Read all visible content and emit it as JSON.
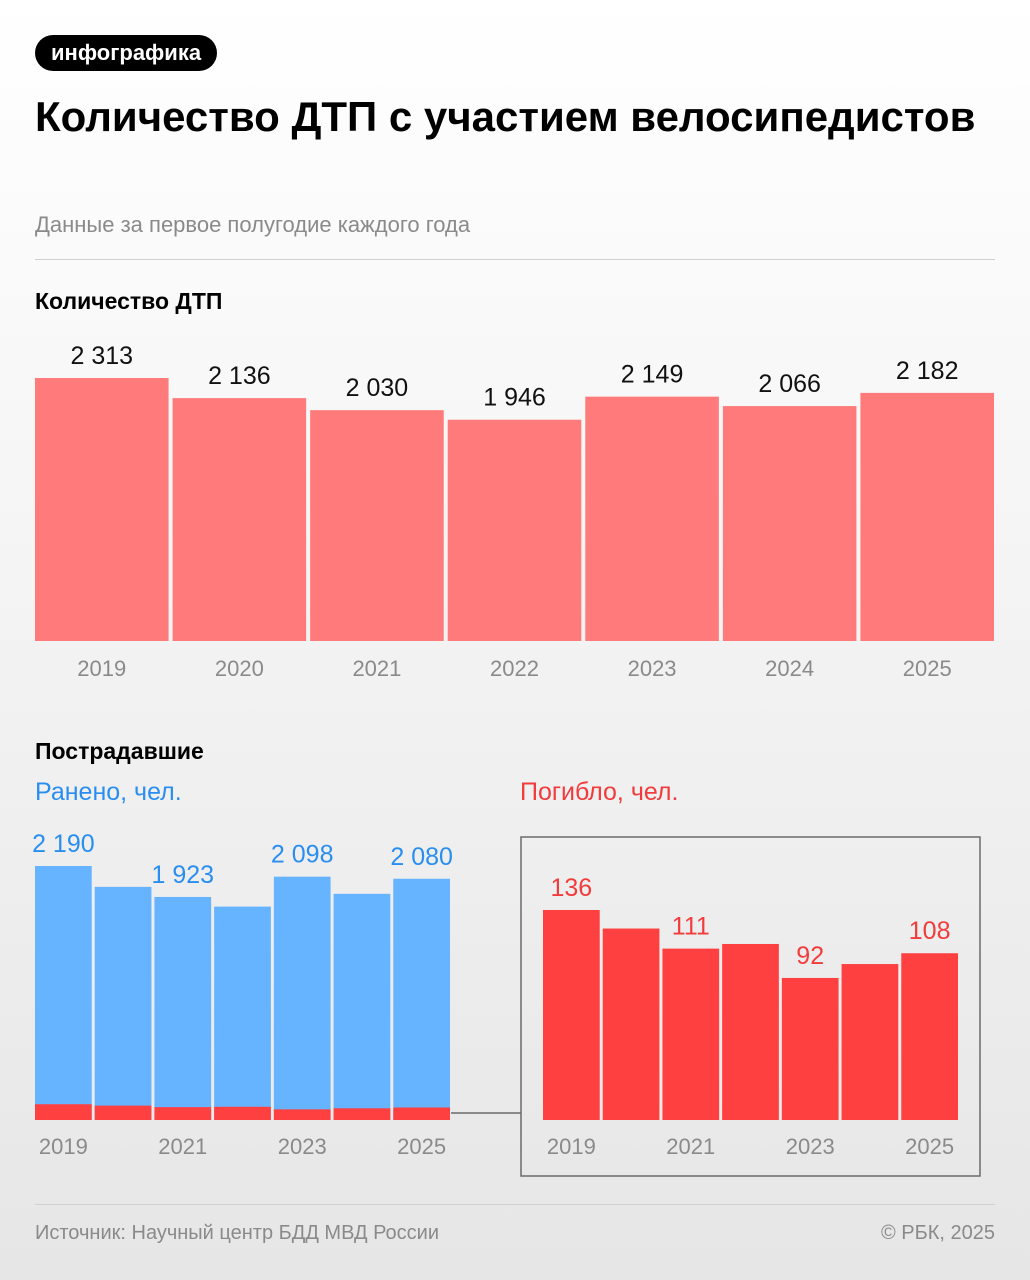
{
  "header": {
    "tag": "инфографика",
    "title": "Количество ДТП с участием велосипедистов",
    "subtitle": "Данные за первое полугодие каждого года"
  },
  "sections": {
    "accidents_heading": "Количество ДТП",
    "victims_heading": "Пострадавшие",
    "injured_label": "Ранено, чел.",
    "killed_label": "Погибло, чел."
  },
  "colors": {
    "accidents": "#ff7a7a",
    "injured": "#66b3ff",
    "injured_text": "#2a8ef0",
    "killed": "#ff4040",
    "killed_text": "#f23c3c",
    "axis_text": "#8a8a8a",
    "value_text": "#111111"
  },
  "footer": {
    "source": "Источник: Научный центр БДД МВД России",
    "copyright": "© РБК, 2025"
  },
  "chart_data": [
    {
      "type": "bar",
      "title": "Количество ДТП",
      "categories": [
        "2019",
        "2020",
        "2021",
        "2022",
        "2023",
        "2024",
        "2025"
      ],
      "values": [
        2313,
        2136,
        2030,
        1946,
        2149,
        2066,
        2182
      ],
      "value_labels": [
        "2 313",
        "2 136",
        "2 030",
        "1 946",
        "2 149",
        "2 066",
        "2 182"
      ],
      "ylim": [
        0,
        2313
      ]
    },
    {
      "type": "bar",
      "title": "Ранено, чел.",
      "categories": [
        "2019",
        "2020",
        "2021",
        "2022",
        "2023",
        "2024",
        "2025"
      ],
      "tick_labels": [
        "2019",
        "",
        "2021",
        "",
        "2023",
        "",
        "2025"
      ],
      "values": [
        2190,
        2010,
        1923,
        1840,
        2098,
        1950,
        2080
      ],
      "value_labels": [
        "2 190",
        "",
        "1 923",
        "",
        "2 098",
        "",
        "2 080"
      ],
      "overlay": [
        136,
        124,
        111,
        114,
        92,
        101,
        108
      ],
      "ylim": [
        0,
        2190
      ]
    },
    {
      "type": "bar",
      "title": "Погибло, чел.",
      "categories": [
        "2019",
        "2020",
        "2021",
        "2022",
        "2023",
        "2024",
        "2025"
      ],
      "tick_labels": [
        "2019",
        "",
        "2021",
        "",
        "2023",
        "",
        "2025"
      ],
      "values": [
        136,
        124,
        111,
        114,
        92,
        101,
        108
      ],
      "value_labels": [
        "136",
        "",
        "111",
        "",
        "92",
        "",
        "108"
      ],
      "ylim": [
        0,
        136
      ]
    }
  ]
}
